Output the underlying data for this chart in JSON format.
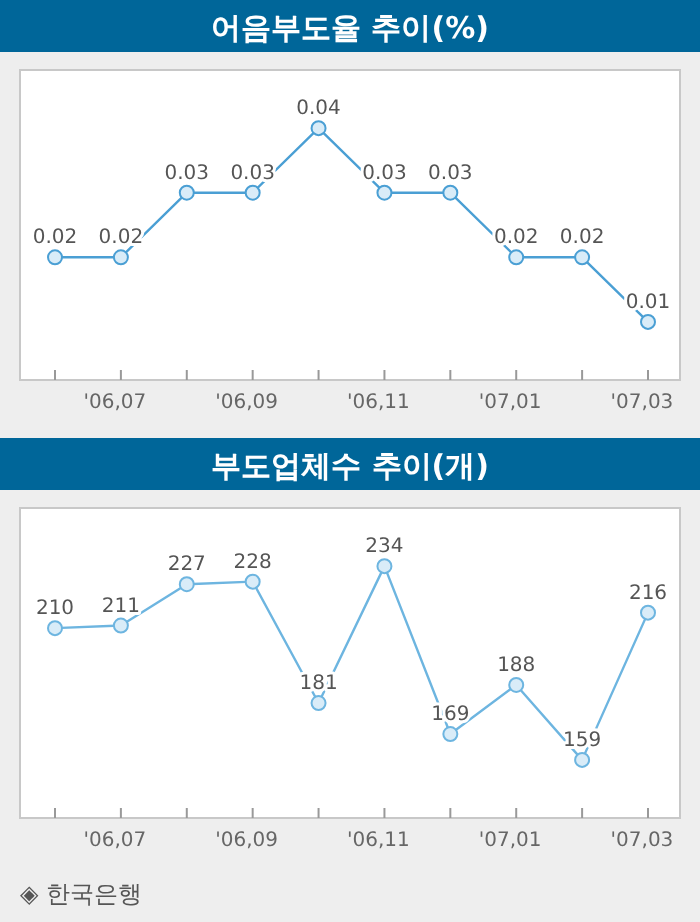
{
  "chart_data": [
    {
      "type": "line",
      "title": "어음부도율 추이(%)",
      "categories": [
        null,
        "'06,07",
        null,
        "'06,09",
        null,
        "'06,11",
        null,
        "'07,01",
        null,
        "'07,03"
      ],
      "series": [
        {
          "color": "#4a9fd4",
          "values": [
            0.02,
            0.02,
            0.03,
            0.03,
            0.04,
            0.03,
            0.03,
            0.02,
            0.02,
            0.01
          ]
        }
      ],
      "marker": "circle",
      "data_labels": true,
      "tick_labels": "x"
    },
    {
      "type": "line",
      "title": "부도업체수 추이(개)",
      "categories": [
        null,
        "'06,07",
        null,
        "'06,09",
        null,
        "'06,11",
        null,
        "'07,01",
        null,
        "'07,03"
      ],
      "series": [
        {
          "color": "#6db5e0",
          "values": [
            210,
            211,
            227,
            228,
            181,
            234,
            169,
            188,
            159,
            216
          ]
        }
      ],
      "marker": "circle",
      "data_labels": true,
      "tick_labels": "x",
      "annotations": [
        "◈ 한국은행"
      ]
    }
  ]
}
